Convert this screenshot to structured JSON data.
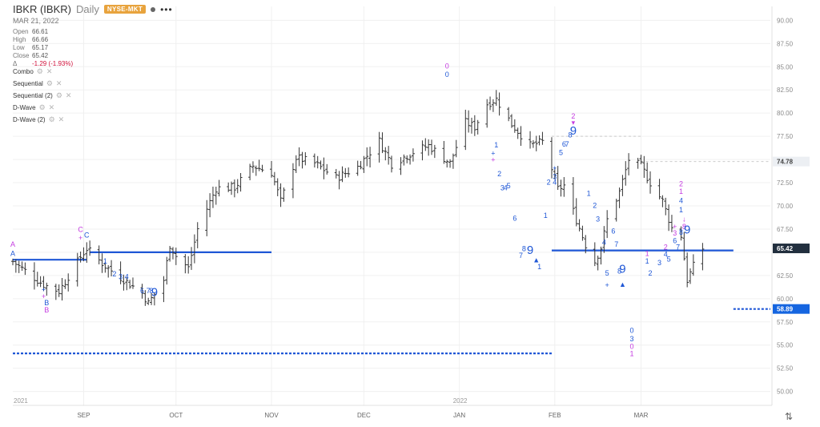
{
  "header": {
    "symbol": "IBKR (IBKR)",
    "period": "Daily",
    "exchange": "NYSE-MKT",
    "more": "•••",
    "date": "MAR 21, 2022",
    "ohlc": [
      {
        "label": "Open",
        "value": "66.61"
      },
      {
        "label": "High",
        "value": "66.66"
      },
      {
        "label": "Low",
        "value": "65.17"
      },
      {
        "label": "Close",
        "value": "65.42"
      }
    ],
    "change_symbol": "Δ",
    "change": "-1.29 (-1.93%)"
  },
  "studies": [
    {
      "label": "Combo"
    },
    {
      "label": "Sequential"
    },
    {
      "label": "Sequential (2)"
    },
    {
      "label": "D-Wave"
    },
    {
      "label": "D-Wave (2)"
    }
  ],
  "icons": {
    "gear": "gear-icon",
    "close": "close-icon",
    "swap": "swap-arrows-icon"
  },
  "colors": {
    "bars": "#333333",
    "blue": "#1f57d6",
    "magenta": "#c43be0",
    "badge_dark": "#222f3e",
    "badge_blue": "#1565e0"
  },
  "chart_data": {
    "type": "ohlc",
    "ylim": [
      48.5,
      91.5
    ],
    "y_ticks": [
      90,
      87.5,
      85,
      82.5,
      80,
      77.5,
      75,
      72.5,
      70,
      67.5,
      65,
      62.5,
      60,
      57.5,
      55,
      52.5,
      50
    ],
    "y_tick_labels": [
      "90.00",
      "87.50",
      "85.00",
      "82.50",
      "80.00",
      "77.50",
      "",
      "72.50",
      "70.00",
      "67.50",
      "",
      "62.50",
      "60.00",
      "57.50",
      "55.00",
      "52.50",
      "50.00"
    ],
    "x_labels": [
      {
        "date": "2021-09-01",
        "label": "SEP"
      },
      {
        "date": "2021-10-01",
        "label": "OCT"
      },
      {
        "date": "2021-11-01",
        "label": "NOV"
      },
      {
        "date": "2021-12-01",
        "label": "DEC"
      },
      {
        "date": "2022-01-01",
        "label": "JAN"
      },
      {
        "date": "2022-02-01",
        "label": "FEB"
      },
      {
        "date": "2022-03-01",
        "label": "MAR"
      }
    ],
    "year_labels": [
      {
        "date": "2021-08-09",
        "label": "2021"
      },
      {
        "date": "2022-01-01",
        "label": "2022"
      }
    ],
    "price_badges": [
      {
        "value": 74.78,
        "label": "74.78",
        "style": "light"
      },
      {
        "value": 65.42,
        "label": "65.42",
        "style": "dark"
      },
      {
        "value": 58.89,
        "label": "58.89",
        "style": "blue"
      }
    ],
    "anchors": [
      {
        "date": "2021-08-09",
        "close": 64.0
      },
      {
        "date": "2021-08-19",
        "close": 61.5
      },
      {
        "date": "2021-08-24",
        "close": 60.8
      },
      {
        "date": "2021-08-31",
        "close": 64.5
      },
      {
        "date": "2021-09-02",
        "close": 65.4
      },
      {
        "date": "2021-09-08",
        "close": 63.5
      },
      {
        "date": "2021-09-13",
        "close": 62.3
      },
      {
        "date": "2021-09-20",
        "close": 60.6
      },
      {
        "date": "2021-09-22",
        "close": 59.5
      },
      {
        "date": "2021-09-27",
        "close": 62.0
      },
      {
        "date": "2021-09-29",
        "close": 65.8
      },
      {
        "date": "2021-10-01",
        "close": 64.6
      },
      {
        "date": "2021-10-05",
        "close": 63.3
      },
      {
        "date": "2021-10-08",
        "close": 67.5
      },
      {
        "date": "2021-10-14",
        "close": 71.9
      },
      {
        "date": "2021-10-20",
        "close": 72.0
      },
      {
        "date": "2021-10-26",
        "close": 74.3
      },
      {
        "date": "2021-11-01",
        "close": 73.6
      },
      {
        "date": "2021-11-04",
        "close": 70.5
      },
      {
        "date": "2021-11-09",
        "close": 75.2
      },
      {
        "date": "2021-11-15",
        "close": 74.6
      },
      {
        "date": "2021-11-22",
        "close": 73.0
      },
      {
        "date": "2021-11-29",
        "close": 74.2
      },
      {
        "date": "2021-12-06",
        "close": 77.0
      },
      {
        "date": "2021-12-10",
        "close": 74.5
      },
      {
        "date": "2021-12-17",
        "close": 75.8
      },
      {
        "date": "2021-12-22",
        "close": 76.5
      },
      {
        "date": "2021-12-29",
        "close": 74.6
      },
      {
        "date": "2022-01-03",
        "close": 79.0
      },
      {
        "date": "2022-01-06",
        "close": 78.5
      },
      {
        "date": "2022-01-10",
        "close": 81.0
      },
      {
        "date": "2022-01-13",
        "close": 81.5
      },
      {
        "date": "2022-01-18",
        "close": 78.8
      },
      {
        "date": "2022-01-24",
        "close": 76.5
      },
      {
        "date": "2022-01-28",
        "close": 76.9
      },
      {
        "date": "2022-01-31",
        "close": 74.0
      },
      {
        "date": "2022-02-02",
        "close": 71.8
      },
      {
        "date": "2022-02-04",
        "close": 72.2
      },
      {
        "date": "2022-02-08",
        "close": 68.5
      },
      {
        "date": "2022-02-11",
        "close": 65.8
      },
      {
        "date": "2022-02-14",
        "close": 64.0
      },
      {
        "date": "2022-02-16",
        "close": 65.5
      },
      {
        "date": "2022-02-18",
        "close": 68.5
      },
      {
        "date": "2022-02-22",
        "close": 71.5
      },
      {
        "date": "2022-02-25",
        "close": 75.0
      },
      {
        "date": "2022-03-01",
        "close": 74.3
      },
      {
        "date": "2022-03-04",
        "close": 72.5
      },
      {
        "date": "2022-03-08",
        "close": 70.5
      },
      {
        "date": "2022-03-11",
        "close": 67.6
      },
      {
        "date": "2022-03-14",
        "close": 66.8
      },
      {
        "date": "2022-03-16",
        "close": 62.0
      },
      {
        "date": "2022-03-18",
        "close": 63.5
      },
      {
        "date": "2022-03-21",
        "close": 65.42
      }
    ],
    "lines": [
      {
        "from": {
          "date": "2021-08-09",
          "y": 64.2
        },
        "to": {
          "date": "2021-09-02",
          "y": 64.2
        },
        "style": "solid"
      },
      {
        "from": {
          "date": "2021-09-03",
          "y": 65.0
        },
        "to": {
          "date": "2021-11-01",
          "y": 65.0
        },
        "style": "solid"
      },
      {
        "from": {
          "date": "2021-08-09",
          "y": 54.1
        },
        "to": {
          "date": "2022-01-31",
          "y": 54.1
        },
        "style": "dotted"
      },
      {
        "from": {
          "date": "2022-01-31",
          "y": 65.2
        },
        "to": {
          "date": "2022-03-31",
          "y": 65.2
        },
        "style": "solid"
      },
      {
        "from": {
          "date": "2022-03-31",
          "y": 58.89
        },
        "to": {
          "date": "2022-04-12",
          "y": 58.89
        },
        "style": "dotted"
      }
    ],
    "ref_lines": [
      {
        "from": {
          "date": "2022-01-31",
          "y": 77.5
        },
        "to": {
          "date": "2022-03-01",
          "y": 77.5
        }
      },
      {
        "from": {
          "date": "2022-03-01",
          "y": 74.78
        },
        "to": {
          "date": "2022-04-12",
          "y": 74.78
        }
      }
    ],
    "annotations": [
      {
        "date": "2021-08-09",
        "y": 65.6,
        "text": "A",
        "color": "magenta"
      },
      {
        "date": "2021-08-09",
        "y": 64.6,
        "text": "A",
        "color": "blue"
      },
      {
        "date": "2021-08-31",
        "y": 67.2,
        "text": "C",
        "color": "magenta"
      },
      {
        "date": "2021-08-31",
        "y": 66.3,
        "text": "+",
        "color": "magenta"
      },
      {
        "date": "2021-09-02",
        "y": 66.6,
        "text": "C",
        "color": "blue"
      },
      {
        "date": "2021-08-19",
        "y": 60.7,
        "text": "+",
        "color": "blue"
      },
      {
        "date": "2021-08-19",
        "y": 60.0,
        "text": "+",
        "color": "magenta"
      },
      {
        "date": "2021-08-20",
        "y": 59.3,
        "text": "B",
        "color": "blue"
      },
      {
        "date": "2021-08-20",
        "y": 58.5,
        "text": "B",
        "color": "magenta"
      },
      {
        "date": "2021-09-08",
        "y": 63.8,
        "text": "1",
        "color": "blue"
      },
      {
        "date": "2021-09-11",
        "y": 62.4,
        "text": "2",
        "color": "blue"
      },
      {
        "date": "2021-09-13",
        "y": 62.1,
        "text": "3",
        "color": "blue"
      },
      {
        "date": "2021-09-15",
        "y": 62.1,
        "text": "4",
        "color": "blue"
      },
      {
        "date": "2021-09-20",
        "y": 60.6,
        "text": "6",
        "color": "blue"
      },
      {
        "date": "2021-09-22",
        "y": 60.6,
        "text": "7",
        "color": "blue"
      },
      {
        "date": "2021-09-23",
        "y": 60.6,
        "text": "8",
        "color": "blue"
      },
      {
        "date": "2021-09-24",
        "y": 60.3,
        "text": "9",
        "color": "blue",
        "big": true
      },
      {
        "date": "2021-12-28",
        "y": 84.8,
        "text": "0",
        "color": "magenta"
      },
      {
        "date": "2021-12-28",
        "y": 83.9,
        "text": "0",
        "color": "blue"
      },
      {
        "date": "2022-01-13",
        "y": 76.3,
        "text": "1",
        "color": "blue"
      },
      {
        "date": "2022-01-12",
        "y": 75.4,
        "text": "+",
        "color": "blue"
      },
      {
        "date": "2022-01-12",
        "y": 74.7,
        "text": "+",
        "color": "magenta"
      },
      {
        "date": "2022-01-14",
        "y": 73.2,
        "text": "2",
        "color": "blue"
      },
      {
        "date": "2022-01-15",
        "y": 71.7,
        "text": "3",
        "color": "blue"
      },
      {
        "date": "2022-01-16",
        "y": 71.7,
        "text": "4",
        "color": "blue"
      },
      {
        "date": "2022-01-17",
        "y": 71.9,
        "text": "5",
        "color": "blue"
      },
      {
        "date": "2022-01-19",
        "y": 68.4,
        "text": "6",
        "color": "blue"
      },
      {
        "date": "2022-01-21",
        "y": 64.4,
        "text": "7",
        "color": "blue"
      },
      {
        "date": "2022-01-22",
        "y": 65.1,
        "text": "8",
        "color": "blue"
      },
      {
        "date": "2022-01-24",
        "y": 64.8,
        "text": "9",
        "color": "blue",
        "big": true
      },
      {
        "date": "2022-01-26",
        "y": 63.9,
        "text": "▲",
        "color": "blue"
      },
      {
        "date": "2022-01-27",
        "y": 63.2,
        "text": "1",
        "color": "blue"
      },
      {
        "date": "2022-01-29",
        "y": 68.7,
        "text": "1",
        "color": "blue"
      },
      {
        "date": "2022-01-30",
        "y": 72.3,
        "text": "2",
        "color": "blue"
      },
      {
        "date": "2022-02-01",
        "y": 73.8,
        "text": "+",
        "color": "blue"
      },
      {
        "date": "2022-02-01",
        "y": 72.9,
        "text": "3",
        "color": "blue"
      },
      {
        "date": "2022-02-01",
        "y": 72.3,
        "text": "4",
        "color": "blue"
      },
      {
        "date": "2022-02-03",
        "y": 75.5,
        "text": "5",
        "color": "blue"
      },
      {
        "date": "2022-02-04",
        "y": 76.4,
        "text": "6",
        "color": "blue"
      },
      {
        "date": "2022-02-05",
        "y": 76.4,
        "text": "7",
        "color": "blue"
      },
      {
        "date": "2022-02-06",
        "y": 77.4,
        "text": "8",
        "color": "blue"
      },
      {
        "date": "2022-02-07",
        "y": 79.4,
        "text": "2",
        "color": "magenta"
      },
      {
        "date": "2022-02-07",
        "y": 78.7,
        "text": "▾",
        "color": "magenta"
      },
      {
        "date": "2022-02-07",
        "y": 77.7,
        "text": "9",
        "color": "blue",
        "big": true
      },
      {
        "date": "2022-02-12",
        "y": 71.1,
        "text": "1",
        "color": "blue"
      },
      {
        "date": "2022-02-14",
        "y": 69.8,
        "text": "2",
        "color": "blue"
      },
      {
        "date": "2022-02-15",
        "y": 68.3,
        "text": "3",
        "color": "blue"
      },
      {
        "date": "2022-02-17",
        "y": 65.8,
        "text": "4",
        "color": "blue"
      },
      {
        "date": "2022-02-18",
        "y": 62.5,
        "text": "5",
        "color": "blue"
      },
      {
        "date": "2022-02-18",
        "y": 61.2,
        "text": "+",
        "color": "blue"
      },
      {
        "date": "2022-02-20",
        "y": 67.0,
        "text": "6",
        "color": "blue"
      },
      {
        "date": "2022-02-21",
        "y": 65.6,
        "text": "7",
        "color": "blue"
      },
      {
        "date": "2022-02-22",
        "y": 62.7,
        "text": "8",
        "color": "blue"
      },
      {
        "date": "2022-02-23",
        "y": 62.8,
        "text": "9",
        "color": "blue",
        "big": true
      },
      {
        "date": "2022-02-23",
        "y": 61.3,
        "text": "▲",
        "color": "blue"
      },
      {
        "date": "2022-02-26",
        "y": 56.3,
        "text": "0",
        "color": "blue"
      },
      {
        "date": "2022-02-26",
        "y": 55.4,
        "text": "3",
        "color": "blue"
      },
      {
        "date": "2022-02-26",
        "y": 54.6,
        "text": "0",
        "color": "magenta"
      },
      {
        "date": "2022-02-26",
        "y": 53.8,
        "text": "1",
        "color": "magenta"
      },
      {
        "date": "2022-03-03",
        "y": 64.6,
        "text": "1",
        "color": "magenta"
      },
      {
        "date": "2022-03-03",
        "y": 63.8,
        "text": "1",
        "color": "blue"
      },
      {
        "date": "2022-03-04",
        "y": 62.5,
        "text": "2",
        "color": "blue"
      },
      {
        "date": "2022-03-07",
        "y": 63.6,
        "text": "3",
        "color": "blue"
      },
      {
        "date": "2022-03-09",
        "y": 65.3,
        "text": "2",
        "color": "magenta"
      },
      {
        "date": "2022-03-09",
        "y": 64.5,
        "text": "4",
        "color": "blue"
      },
      {
        "date": "2022-03-10",
        "y": 64.0,
        "text": "5",
        "color": "blue"
      },
      {
        "date": "2022-03-12",
        "y": 67.5,
        "text": "+",
        "color": "magenta"
      },
      {
        "date": "2022-03-12",
        "y": 66.8,
        "text": "3",
        "color": "magenta"
      },
      {
        "date": "2022-03-12",
        "y": 66.0,
        "text": "6",
        "color": "blue"
      },
      {
        "date": "2022-03-13",
        "y": 65.3,
        "text": "7",
        "color": "blue"
      },
      {
        "date": "2022-03-14",
        "y": 72.1,
        "text": "2",
        "color": "magenta"
      },
      {
        "date": "2022-03-14",
        "y": 71.3,
        "text": "1",
        "color": "magenta"
      },
      {
        "date": "2022-03-14",
        "y": 70.3,
        "text": "4",
        "color": "blue"
      },
      {
        "date": "2022-03-14",
        "y": 69.3,
        "text": "1",
        "color": "blue"
      },
      {
        "date": "2022-03-15",
        "y": 68.3,
        "text": "↓",
        "color": "magenta"
      },
      {
        "date": "2022-03-15",
        "y": 67.5,
        "text": "8",
        "color": "magenta"
      },
      {
        "date": "2022-03-14",
        "y": 66.9,
        "text": "8",
        "color": "blue"
      },
      {
        "date": "2022-03-16",
        "y": 67.0,
        "text": "9",
        "color": "blue",
        "big": true
      }
    ]
  }
}
